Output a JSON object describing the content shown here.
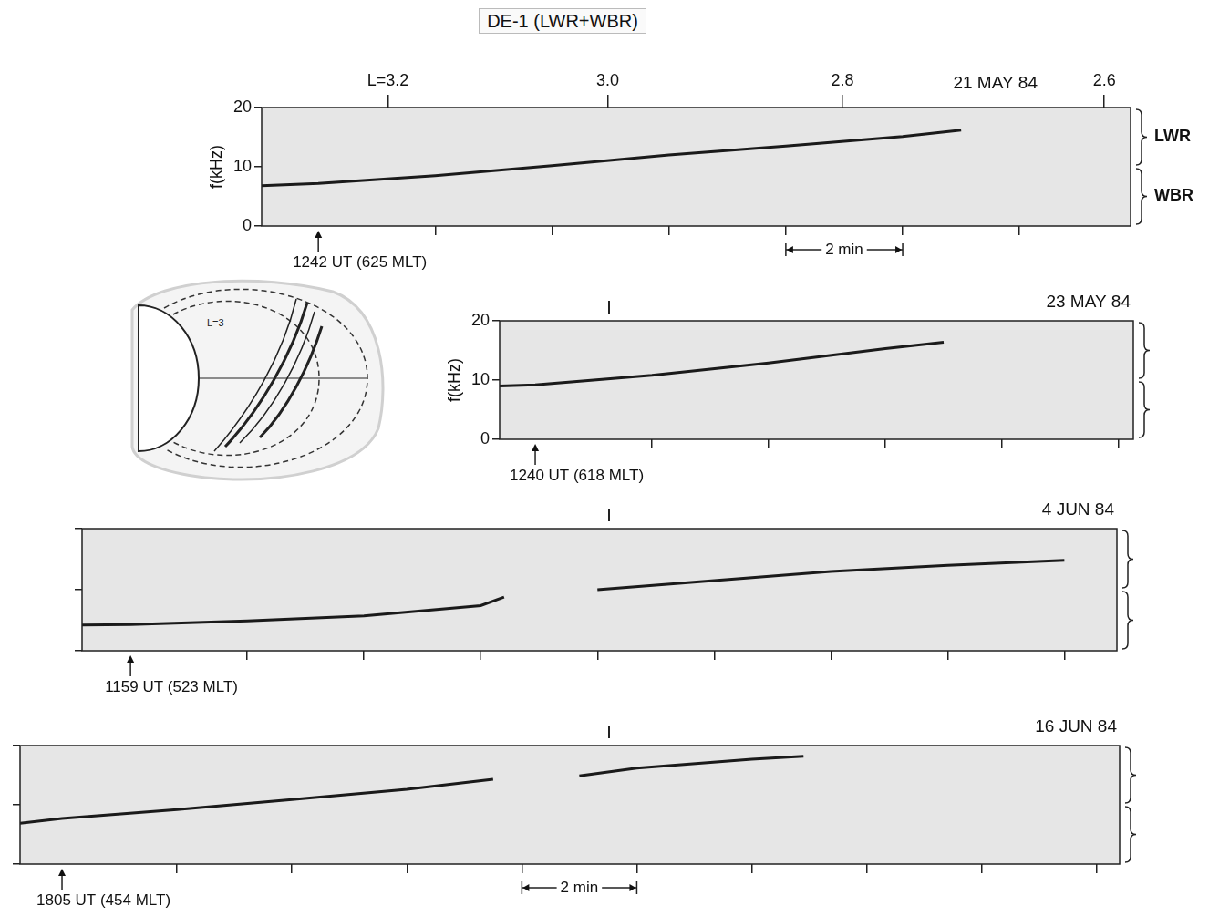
{
  "title": "DE-1 (LWR+WBR)",
  "bands": [
    {
      "label": "LWR",
      "from": 10,
      "to": 20
    },
    {
      "label": "WBR",
      "from": 0,
      "to": 10
    }
  ],
  "inset": {
    "label": "L=3"
  },
  "chart_data": [
    {
      "type": "line",
      "title": "21 MAY 84",
      "color": "#1a1a1a",
      "grid": false,
      "tick_labels": "y",
      "y_label": "f(kHz)",
      "x": [
        -0.97,
        0,
        2,
        4,
        6,
        8,
        10,
        11
      ],
      "values": [
        6.8,
        7.2,
        8.5,
        10.2,
        12.0,
        13.5,
        15.1,
        16.2
      ],
      "xlim": [
        -0.97,
        13.9
      ],
      "ylim": [
        0,
        20
      ],
      "xticks": [
        2,
        4,
        6,
        8,
        10,
        12
      ],
      "yticks": [
        0,
        10,
        20
      ],
      "x2ticks": [
        {
          "value": 1.19,
          "label": "L=3.2"
        },
        {
          "value": 4.95,
          "label": "3.0"
        },
        {
          "value": 8.97,
          "label": "2.8"
        },
        {
          "value": 13.45,
          "label": "2.6"
        }
      ],
      "annotation": {
        "x": 0,
        "label": "1242 UT (625 MLT)"
      },
      "scale_bar": {
        "from": 8,
        "to": 10,
        "label": "2 min"
      }
    },
    {
      "type": "line",
      "title": "23 MAY 84",
      "color": "#1a1a1a",
      "grid": false,
      "tick_labels": "y",
      "y_label": "f(kHz)",
      "x": [
        -0.61,
        0,
        2,
        4,
        6,
        7
      ],
      "values": [
        9.0,
        9.2,
        10.8,
        12.9,
        15.3,
        16.4
      ],
      "xlim": [
        -0.61,
        10.25
      ],
      "ylim": [
        0,
        20
      ],
      "xticks": [
        2,
        4,
        6,
        8,
        10
      ],
      "yticks": [
        0,
        10,
        20
      ],
      "annotation": {
        "x": 0,
        "label": "1240 UT (618 MLT)"
      }
    },
    {
      "type": "line",
      "title": "4 JUN 84",
      "color": "#1a1a1a",
      "grid": false,
      "tick_labels": false,
      "x": [
        -0.83,
        0,
        2,
        4,
        6,
        6.4,
        7,
        8,
        10,
        12,
        14,
        16
      ],
      "values": [
        4.2,
        4.3,
        4.9,
        5.7,
        7.4,
        8.8,
        null,
        10.0,
        11.5,
        13.0,
        14.0,
        14.8
      ],
      "xlim": [
        -0.83,
        16.9
      ],
      "ylim": [
        0,
        20
      ],
      "xticks": [
        2,
        4,
        6,
        8,
        10,
        12,
        14,
        16
      ],
      "yticks": [
        0,
        10,
        20
      ],
      "annotation": {
        "x": 0,
        "label": "1159 UT (523 MLT)"
      }
    },
    {
      "type": "line",
      "title": "16 JUN 84",
      "color": "#1a1a1a",
      "grid": false,
      "tick_labels": false,
      "x": [
        -0.73,
        0,
        2,
        4,
        6,
        7.5,
        8,
        9,
        10,
        12,
        12.9
      ],
      "values": [
        6.9,
        7.7,
        9.2,
        10.9,
        12.6,
        14.3,
        null,
        14.9,
        16.2,
        17.7,
        18.2
      ],
      "xlim": [
        -0.73,
        18.4
      ],
      "ylim": [
        0,
        20
      ],
      "xticks": [
        2,
        4,
        6,
        8,
        10,
        12,
        14,
        16,
        18
      ],
      "yticks": [
        0,
        10,
        20
      ],
      "annotation": {
        "x": 0,
        "label": "1805 UT (454 MLT)"
      },
      "scale_bar": {
        "from": 8,
        "to": 10,
        "label": "2 min"
      }
    }
  ]
}
